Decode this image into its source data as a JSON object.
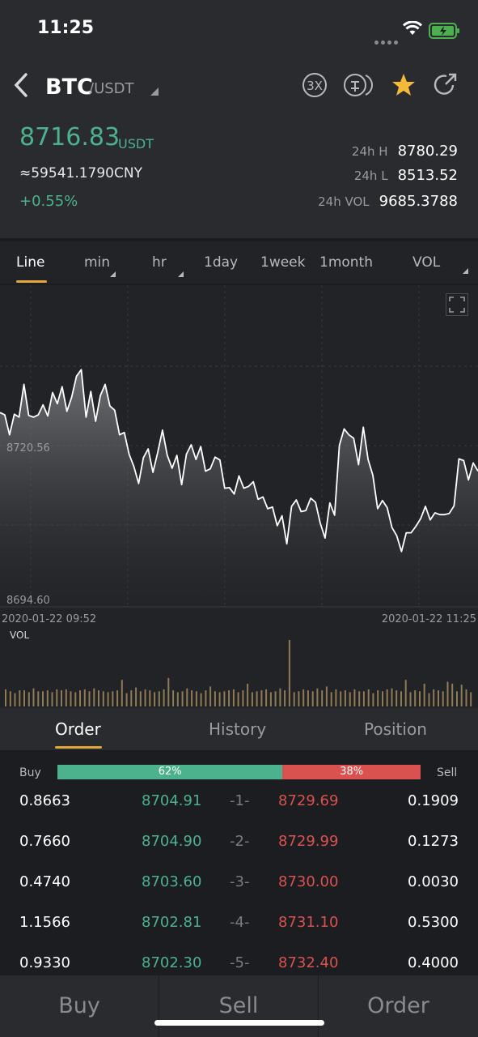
{
  "status": {
    "time": "11:25"
  },
  "pair": {
    "base": "BTC",
    "quote": "/USDT"
  },
  "header_icons": [
    "leverage-3x-icon",
    "convert-icon",
    "favorite-star-icon",
    "share-icon"
  ],
  "price": {
    "last": "8716.83",
    "unit": "USDT",
    "cny": "≈59541.1790CNY",
    "change": "+0.55%"
  },
  "stats": [
    {
      "label": "24h H",
      "value": "8780.29"
    },
    {
      "label": "24h L",
      "value": "8513.52"
    },
    {
      "label": "24h VOL",
      "value": "9685.3788"
    }
  ],
  "timeframes": [
    {
      "label": "Line",
      "active": true,
      "caret": false
    },
    {
      "label": "min",
      "active": false,
      "caret": true
    },
    {
      "label": "hr",
      "active": false,
      "caret": true
    },
    {
      "label": "1day",
      "active": false,
      "caret": false
    },
    {
      "label": "1week",
      "active": false,
      "caret": false
    },
    {
      "label": "1month",
      "active": false,
      "caret": false
    },
    {
      "label": "VOL",
      "active": false,
      "caret": true
    }
  ],
  "chart_data": {
    "type": "area",
    "y_labels": [
      "8720.56",
      "8694.60"
    ],
    "x_start": "2020-01-22 09:52",
    "x_end": "2020-01-22 11:25",
    "volume_label": "VOL",
    "colors": {
      "line": "#ffffff",
      "volume": "#8f7c55",
      "grid": "#3a3b40"
    },
    "values": [
      8726.2,
      8725.8,
      8722.4,
      8725.9,
      8725.4,
      8731.0,
      8725.7,
      8725.4,
      8725.8,
      8727.5,
      8725.6,
      8729.6,
      8727.7,
      8730.6,
      8726.4,
      8728.8,
      8732.4,
      8733.5,
      8725.4,
      8729.8,
      8724.7,
      8729.1,
      8731.0,
      8727.3,
      8726.6,
      8722.4,
      8722.8,
      8719.1,
      8717.0,
      8714.1,
      8718.5,
      8720.0,
      8716.0,
      8719.4,
      8723.2,
      8718.9,
      8716.7,
      8718.9,
      8713.9,
      8719.1,
      8720.7,
      8718.2,
      8720.4,
      8716.2,
      8716.6,
      8718.6,
      8718.1,
      8713.3,
      8713.4,
      8712.3,
      8715.4,
      8713.3,
      8713.6,
      8714.4,
      8711.4,
      8711.8,
      8709.8,
      8710.1,
      8706.9,
      8708.6,
      8703.8,
      8710.2,
      8711.3,
      8709.3,
      8709.5,
      8711.6,
      8710.9,
      8707.3,
      8704.8,
      8710.8,
      8708.7,
      8720.6,
      8723.4,
      8722.4,
      8721.8,
      8717.3,
      8723.7,
      8718.2,
      8715.5,
      8709.8,
      8711.2,
      8710.0,
      8706.6,
      8705.2,
      8702.5,
      8705.7,
      8705.7,
      8706.8,
      8708.1,
      8710.2,
      8707.9,
      8709.1,
      8708.8,
      8708.8,
      8709.0,
      8710.3,
      8718.3,
      8718.0,
      8714.7,
      8717.6,
      8716.2
    ],
    "volume": [
      18,
      16,
      14,
      17,
      17,
      15,
      19,
      16,
      16,
      17,
      15,
      18,
      17,
      18,
      16,
      15,
      17,
      18,
      16,
      19,
      17,
      16,
      15,
      16,
      17,
      28,
      14,
      17,
      20,
      16,
      18,
      17,
      15,
      16,
      18,
      30,
      17,
      15,
      16,
      19,
      17,
      16,
      14,
      17,
      21,
      16,
      15,
      16,
      17,
      18,
      15,
      17,
      24,
      15,
      16,
      17,
      18,
      15,
      16,
      19,
      17,
      70,
      15,
      16,
      18,
      17,
      16,
      19,
      17,
      21,
      15,
      18,
      16,
      17,
      15,
      18,
      16,
      16,
      18,
      14,
      17,
      16,
      18,
      19,
      17,
      16,
      28,
      15,
      17,
      16,
      24,
      14,
      18,
      17,
      16,
      26,
      24,
      16,
      23,
      18,
      15
    ],
    "grid": true
  },
  "order_tabs": [
    "Order",
    "History",
    "Position"
  ],
  "book": {
    "buy_label": "Buy",
    "sell_label": "Sell",
    "buy_pct": "62%",
    "sell_pct": "38%",
    "buy_ratio": 0.62,
    "rows": [
      {
        "buy_amt": "0.8663",
        "buy_price": "8704.91",
        "level": "-1-",
        "sell_price": "8729.69",
        "sell_amt": "0.1909"
      },
      {
        "buy_amt": "0.7660",
        "buy_price": "8704.90",
        "level": "-2-",
        "sell_price": "8729.99",
        "sell_amt": "0.1273"
      },
      {
        "buy_amt": "0.4740",
        "buy_price": "8703.60",
        "level": "-3-",
        "sell_price": "8730.00",
        "sell_amt": "0.0030"
      },
      {
        "buy_amt": "1.1566",
        "buy_price": "8702.81",
        "level": "-4-",
        "sell_price": "8731.10",
        "sell_amt": "0.5300"
      },
      {
        "buy_amt": "0.9330",
        "buy_price": "8702.30",
        "level": "-5-",
        "sell_price": "8732.40",
        "sell_amt": "0.4000"
      }
    ]
  },
  "bottom": {
    "buy": "Buy",
    "sell": "Sell",
    "order": "Order"
  }
}
